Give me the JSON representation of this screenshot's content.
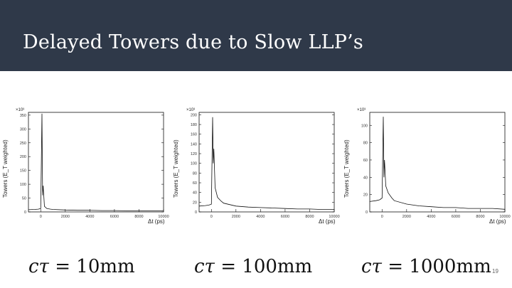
{
  "slide": {
    "title": "Delayed Towers due to Slow LLP’s",
    "page_number": "19",
    "colors": {
      "header_bg": "#2f3949",
      "title_text": "#ffffff",
      "background": "#ffffff"
    }
  },
  "plots": [
    {
      "ylabel": "Towers (E_T weighted)",
      "exponent": "×10³",
      "xlabel": "Δt (ps)",
      "yticks": [
        "0",
        "50",
        "100",
        "150",
        "200",
        "250",
        "300",
        "350"
      ],
      "xticks": [
        "0",
        "2000",
        "4000",
        "6000",
        "8000",
        "10000"
      ],
      "caption_lhs": "cτ",
      "caption_eq": "= ",
      "caption_rhs": "10mm"
    },
    {
      "ylabel": "Towers (E_T weighted)",
      "exponent": "×10³",
      "xlabel": "Δt (ps)",
      "yticks": [
        "0",
        "20",
        "40",
        "60",
        "80",
        "100",
        "120",
        "140",
        "160",
        "180",
        "200"
      ],
      "xticks": [
        "0",
        "2000",
        "4000",
        "6000",
        "8000",
        "10000"
      ],
      "caption_lhs": "cτ",
      "caption_eq": "= ",
      "caption_rhs": "100mm"
    },
    {
      "ylabel": "Towers (E_T weighted)",
      "exponent": "×10³",
      "xlabel": "Δt (ps)",
      "yticks": [
        "0",
        "20",
        "40",
        "60",
        "80",
        "100"
      ],
      "xticks": [
        "0",
        "2000",
        "4000",
        "6000",
        "8000",
        "10000"
      ],
      "caption_lhs": "cτ",
      "caption_eq": "= ",
      "caption_rhs": "1000mm"
    }
  ],
  "chart_data": [
    {
      "type": "line",
      "title": "",
      "xlabel": "Δt (ps)",
      "ylabel": "Towers (E_T weighted)",
      "xlim": [
        -1000,
        10000
      ],
      "ylim": [
        0,
        360
      ],
      "y_unit_scale": "×10³",
      "series": [
        {
          "x": [
            -1000,
            -500,
            -200,
            0,
            100,
            150,
            200,
            300,
            500,
            800,
            1000,
            2000,
            3000,
            4000,
            5000,
            6000,
            7000,
            8000,
            9000,
            10000
          ],
          "values": [
            8,
            9,
            10,
            12,
            355,
            60,
            95,
            20,
            12,
            10,
            9,
            7,
            6,
            6,
            5,
            5,
            4,
            4,
            4,
            4
          ]
        }
      ]
    },
    {
      "type": "line",
      "title": "",
      "xlabel": "Δt (ps)",
      "ylabel": "Towers (E_T weighted)",
      "xlim": [
        -1000,
        10000
      ],
      "ylim": [
        0,
        205
      ],
      "y_unit_scale": "×10³",
      "series": [
        {
          "x": [
            -1000,
            -500,
            -200,
            0,
            100,
            150,
            200,
            300,
            500,
            800,
            1000,
            2000,
            3000,
            4000,
            5000,
            6000,
            7000,
            8000,
            9000,
            10000
          ],
          "values": [
            12,
            13,
            14,
            16,
            195,
            100,
            130,
            50,
            30,
            22,
            18,
            12,
            10,
            9,
            8,
            7,
            6,
            6,
            5,
            5
          ]
        }
      ]
    },
    {
      "type": "line",
      "title": "",
      "xlabel": "Δt (ps)",
      "ylabel": "Towers (E_T weighted)",
      "xlim": [
        -1000,
        10000
      ],
      "ylim": [
        0,
        115
      ],
      "y_unit_scale": "×10³",
      "series": [
        {
          "x": [
            -1000,
            -500,
            -200,
            0,
            100,
            150,
            200,
            300,
            500,
            800,
            1000,
            2000,
            3000,
            4000,
            5000,
            6000,
            7000,
            8000,
            9000,
            10000
          ],
          "values": [
            12,
            13,
            14,
            16,
            110,
            40,
            60,
            30,
            22,
            16,
            13,
            9,
            7,
            6,
            5,
            5,
            4,
            4,
            4,
            3
          ]
        }
      ]
    }
  ]
}
